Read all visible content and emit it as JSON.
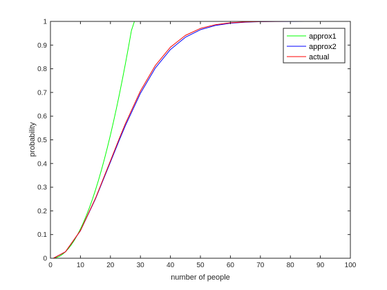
{
  "chart_data": {
    "type": "line",
    "title": "",
    "xlabel": "number of people",
    "ylabel": "probability",
    "xlim": [
      0,
      100
    ],
    "ylim": [
      0,
      1
    ],
    "xticks": [
      "0",
      "10",
      "20",
      "30",
      "40",
      "50",
      "60",
      "70",
      "80",
      "90",
      "100"
    ],
    "yticks": [
      "0",
      "0.1",
      "0.2",
      "0.3",
      "0.4",
      "0.5",
      "0.6",
      "0.7",
      "0.8",
      "0.9",
      "1"
    ],
    "grid": false,
    "legend_position": "top-right",
    "series": [
      {
        "name": "approx1",
        "color": "#00ff00",
        "x": [
          1,
          2,
          3,
          4,
          5,
          6,
          7,
          8,
          9,
          10,
          11,
          12,
          13,
          14,
          15,
          16,
          17,
          18,
          19,
          20,
          21,
          22,
          23,
          24,
          25,
          26,
          27,
          28
        ],
        "y": [
          0.0,
          0.0027,
          0.0082,
          0.0164,
          0.0274,
          0.0411,
          0.0575,
          0.0767,
          0.0986,
          0.1233,
          0.1507,
          0.1808,
          0.2137,
          0.2493,
          0.2877,
          0.3288,
          0.3726,
          0.4192,
          0.4685,
          0.5205,
          0.5753,
          0.6329,
          0.6932,
          0.7562,
          0.8219,
          0.8904,
          0.9616,
          1.0
        ]
      },
      {
        "name": "approx2",
        "color": "#0000ff",
        "x": [
          1,
          5,
          10,
          15,
          20,
          23,
          25,
          30,
          35,
          40,
          45,
          50,
          55,
          60,
          65,
          70,
          75,
          80,
          85,
          90,
          95,
          100
        ],
        "y": [
          0.0,
          0.027,
          0.116,
          0.2502,
          0.406,
          0.5,
          0.5604,
          0.6963,
          0.8038,
          0.8813,
          0.9331,
          0.9649,
          0.9829,
          0.9923,
          0.9968,
          0.9988,
          0.9995,
          0.9998,
          1.0,
          1.0,
          1.0,
          1.0
        ]
      },
      {
        "name": "actual",
        "color": "#ff0000",
        "x": [
          1,
          5,
          10,
          15,
          20,
          23,
          25,
          30,
          35,
          40,
          45,
          50,
          55,
          60,
          65,
          70,
          75,
          80,
          85,
          90,
          95,
          100
        ],
        "y": [
          0.0,
          0.0271,
          0.1169,
          0.2529,
          0.4114,
          0.5073,
          0.5687,
          0.7063,
          0.8144,
          0.8912,
          0.941,
          0.9704,
          0.9863,
          0.9941,
          0.9977,
          0.9992,
          0.9997,
          0.9999,
          1.0,
          1.0,
          1.0,
          1.0
        ]
      }
    ]
  }
}
